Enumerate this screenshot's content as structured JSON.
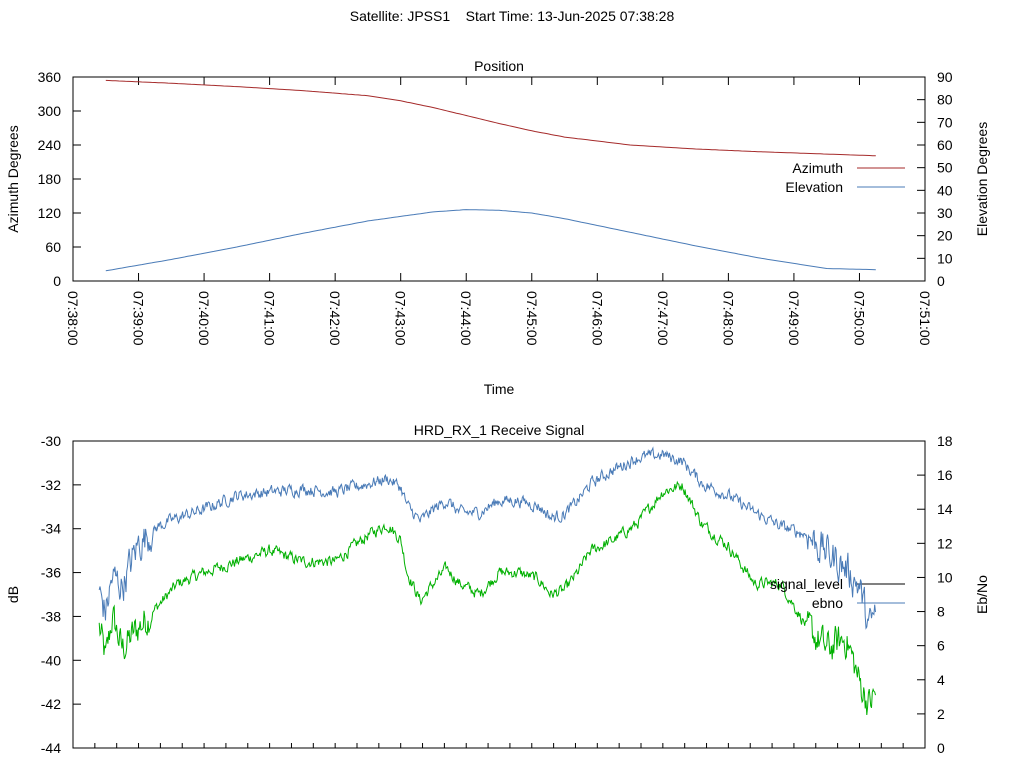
{
  "header": {
    "title": "Satellite: JPSS1    Start Time: 13-Jun-2025 07:38:28"
  },
  "chart_data": [
    {
      "type": "line",
      "title": "Position",
      "xlabel": "Time",
      "ylabel": "Azimuth Degrees",
      "y2label": "Elevation Degrees",
      "x_ticks": [
        "07:38:00",
        "07:39:00",
        "07:40:00",
        "07:41:00",
        "07:42:00",
        "07:43:00",
        "07:44:00",
        "07:45:00",
        "07:46:00",
        "07:47:00",
        "07:48:00",
        "07:49:00",
        "07:50:00",
        "07:51:00"
      ],
      "xlim_minutes": [
        0,
        13
      ],
      "ylim": [
        0,
        360
      ],
      "y_ticks": [
        "0",
        "60",
        "120",
        "180",
        "240",
        "300",
        "360"
      ],
      "y2lim": [
        0,
        90
      ],
      "y2_ticks": [
        "0",
        "10",
        "20",
        "30",
        "40",
        "50",
        "60",
        "70",
        "80",
        "90"
      ],
      "legend_position": "right",
      "series": [
        {
          "name": "Azimuth",
          "axis": "y",
          "color": "#a52a2a",
          "x": [
            0.5,
            1.5,
            2.5,
            3.5,
            4.5,
            5.0,
            5.5,
            6.0,
            6.5,
            7.0,
            7.5,
            8.5,
            9.5,
            10.5,
            11.5,
            12.25
          ],
          "y": [
            354,
            349,
            343,
            336,
            327,
            318,
            306,
            292,
            278,
            265,
            254,
            240,
            233,
            228,
            224,
            221
          ]
        },
        {
          "name": "Elevation",
          "axis": "y2",
          "color": "#4a7bb7",
          "x": [
            0.5,
            1.5,
            2.5,
            3.5,
            4.5,
            5.5,
            6.0,
            6.5,
            7.0,
            7.5,
            8.5,
            9.5,
            10.5,
            11.5,
            12.25
          ],
          "y": [
            4.5,
            9.5,
            15,
            21,
            26.5,
            30.5,
            31.5,
            31.2,
            30,
            27.5,
            21.5,
            15.5,
            10,
            5.5,
            5
          ]
        }
      ]
    },
    {
      "type": "line",
      "title": "HRD_RX_1 Receive Signal",
      "ylabel": "dB",
      "y2label": "Eb/No",
      "xlim_minutes": [
        0,
        13
      ],
      "ylim": [
        -44,
        -30
      ],
      "y_ticks": [
        "-30",
        "-32",
        "-34",
        "-36",
        "-38",
        "-40",
        "-42",
        "-44"
      ],
      "y2lim": [
        0,
        18
      ],
      "y2_ticks": [
        "0",
        "2",
        "4",
        "6",
        "8",
        "10",
        "12",
        "14",
        "16",
        "18"
      ],
      "legend_position": "right",
      "series": [
        {
          "name": "signal_level",
          "axis": "y",
          "color": "#00b000",
          "x": [
            0.4,
            0.5,
            0.6,
            0.75,
            1.0,
            1.3,
            1.6,
            2.0,
            2.5,
            3.0,
            3.5,
            4.0,
            4.5,
            4.8,
            5.0,
            5.1,
            5.3,
            5.5,
            5.7,
            5.9,
            6.2,
            6.5,
            6.8,
            7.1,
            7.3,
            7.5,
            7.7,
            7.9,
            8.2,
            8.6,
            9.0,
            9.3,
            9.6,
            10.0,
            10.4,
            10.8,
            11.2,
            11.5,
            11.8,
            12.0,
            12.15,
            12.25
          ],
          "y": [
            -38.5,
            -40,
            -38,
            -39.5,
            -38.5,
            -37.5,
            -36.5,
            -36,
            -35.5,
            -35,
            -35.5,
            -35.5,
            -34.3,
            -33.8,
            -34.5,
            -36,
            -37.3,
            -36.5,
            -35.8,
            -36.5,
            -37,
            -36,
            -36,
            -36.3,
            -37,
            -36.8,
            -36,
            -35,
            -34.6,
            -33.8,
            -32.3,
            -32,
            -33.8,
            -34.8,
            -36.5,
            -36.5,
            -38.5,
            -39.5,
            -39,
            -41,
            -42,
            -41.5
          ]
        },
        {
          "name": "ebno",
          "axis": "y2",
          "color": "#4a7bb7",
          "x": [
            0.4,
            0.5,
            0.6,
            0.75,
            1.0,
            1.3,
            1.6,
            2.0,
            2.5,
            3.0,
            3.5,
            4.0,
            4.5,
            4.8,
            5.0,
            5.1,
            5.3,
            5.5,
            5.7,
            5.9,
            6.2,
            6.5,
            6.8,
            7.1,
            7.3,
            7.5,
            7.7,
            7.9,
            8.2,
            8.6,
            9.0,
            9.3,
            9.6,
            10.0,
            10.4,
            10.8,
            11.2,
            11.5,
            11.8,
            12.0,
            12.15,
            12.25
          ],
          "y": [
            9,
            8,
            10,
            9.5,
            12,
            13,
            13.5,
            14,
            14.8,
            15,
            15.2,
            15,
            15.5,
            15.8,
            15.3,
            14.2,
            13.3,
            14,
            14.5,
            13.8,
            13.8,
            14.5,
            14.5,
            14.2,
            13.5,
            13.7,
            14.5,
            15.5,
            16.2,
            17,
            17.2,
            16.8,
            15.5,
            14.8,
            13.8,
            13,
            12.5,
            11.5,
            10.5,
            9.5,
            7,
            8
          ]
        }
      ]
    }
  ]
}
